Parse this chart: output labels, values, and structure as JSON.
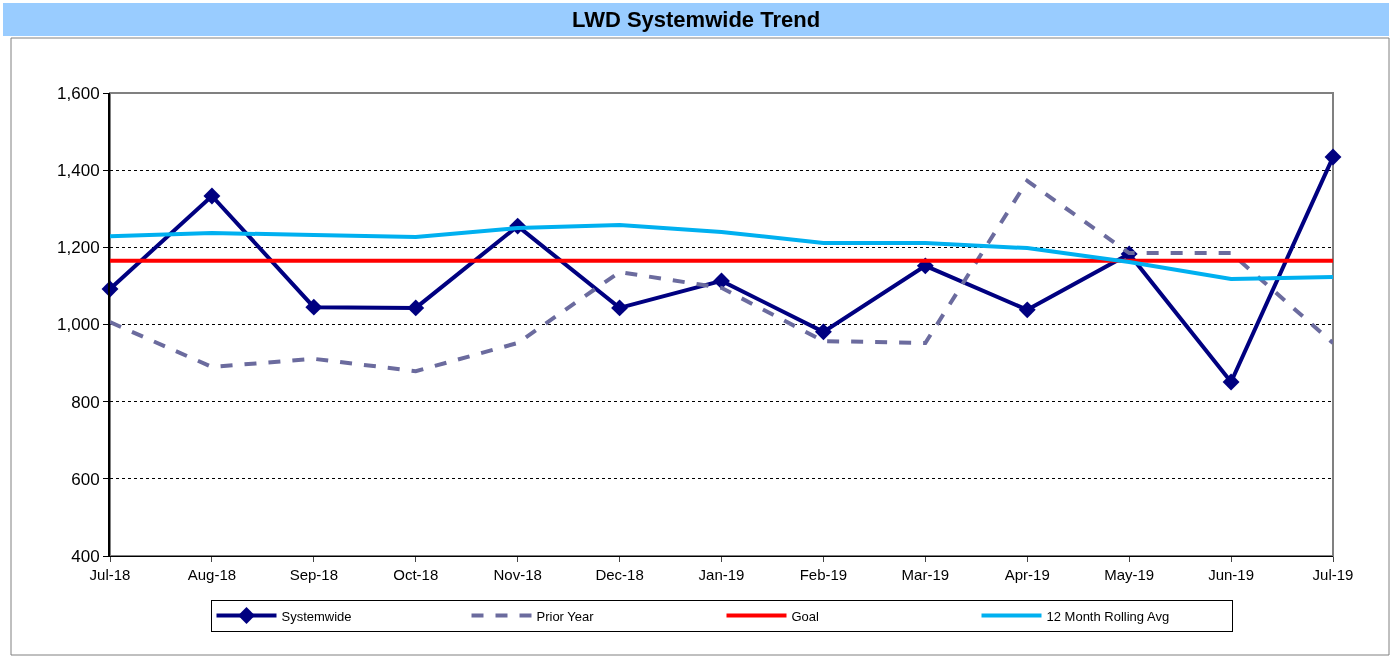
{
  "chart_data": {
    "type": "line",
    "title": "LWD Systemwide Trend",
    "categories": [
      "Jul-18",
      "Aug-18",
      "Sep-18",
      "Oct-18",
      "Nov-18",
      "Dec-18",
      "Jan-19",
      "Feb-19",
      "Mar-19",
      "Apr-19",
      "May-19",
      "Jun-19",
      "Jul-19"
    ],
    "series": [
      {
        "name": "Systemwide",
        "color": "#000080",
        "marker": "diamond",
        "line_style": "solid",
        "values": [
          1092,
          1333,
          1045,
          1043,
          1255,
          1043,
          1113,
          981,
          1152,
          1038,
          1183,
          851,
          1434
        ]
      },
      {
        "name": "Prior Year",
        "color": "#6b6b9e",
        "marker": "none",
        "line_style": "dashed",
        "values": [
          1006,
          890,
          911,
          879,
          952,
          1136,
          1095,
          957,
          952,
          1372,
          1185,
          1185,
          952
        ]
      },
      {
        "name": "Goal",
        "color": "#ff0000",
        "marker": "none",
        "line_style": "solid",
        "values": [
          1165,
          1165,
          1165,
          1165,
          1165,
          1165,
          1165,
          1165,
          1165,
          1165,
          1165,
          1165,
          1165
        ]
      },
      {
        "name": "12 Month Rolling Avg",
        "color": "#00b0f0",
        "marker": "none",
        "line_style": "solid",
        "values": [
          1229,
          1237,
          1232,
          1227,
          1250,
          1258,
          1240,
          1211,
          1211,
          1198,
          1162,
          1118,
          1123
        ]
      }
    ],
    "ylim": [
      400,
      1600
    ],
    "yticks": [
      {
        "value": 400,
        "label": "400"
      },
      {
        "value": 600,
        "label": "600"
      },
      {
        "value": 800,
        "label": "800"
      },
      {
        "value": 1000,
        "label": "1,000"
      },
      {
        "value": 1200,
        "label": "1,200"
      },
      {
        "value": 1400,
        "label": "1,400"
      },
      {
        "value": 1600,
        "label": "1,600"
      }
    ],
    "grid": "y",
    "legend": "bottom"
  }
}
